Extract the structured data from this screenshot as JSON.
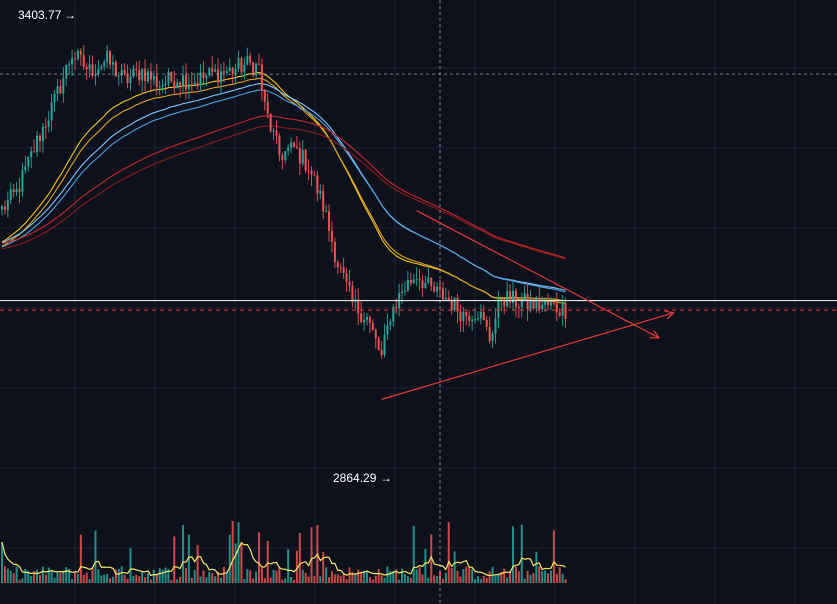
{
  "colors": {
    "background": "#0d111c",
    "grid": "#1c2232",
    "candle_up": "#26a69a",
    "candle_down": "#ef5350",
    "ma_yellow": "#f5c518",
    "ma_orange": "#e0a020",
    "ma_blue": "#4aa3df",
    "ma_lightblue": "#7ec8ff",
    "ma_red": "#c62828",
    "ma_darkred": "#8e1b1b",
    "trendline": "#e53935",
    "crosshair": "#b0b4c0",
    "price_line": "#ffffff",
    "ref_line": "#e53935",
    "volume_ma": "#f5e663"
  },
  "chart_data": {
    "type": "candlestick",
    "high_label": "3403.77",
    "low_label": "2864.29",
    "high_value": 3403.77,
    "low_value": 2864.29,
    "y_range": [
      2725,
      3420
    ],
    "grid": true,
    "anchors": [
      [
        0,
        3140
      ],
      [
        5,
        3165
      ],
      [
        12,
        3240
      ],
      [
        18,
        3300
      ],
      [
        24,
        3370
      ],
      [
        30,
        3345
      ],
      [
        36,
        3360
      ],
      [
        42,
        3330
      ],
      [
        48,
        3345
      ],
      [
        54,
        3325
      ],
      [
        60,
        3335
      ],
      [
        66,
        3330
      ],
      [
        72,
        3340
      ],
      [
        78,
        3345
      ],
      [
        84,
        3355
      ],
      [
        88,
        3350
      ],
      [
        90,
        3290
      ],
      [
        95,
        3220
      ],
      [
        100,
        3230
      ],
      [
        105,
        3205
      ],
      [
        110,
        3145
      ],
      [
        115,
        3060
      ],
      [
        120,
        3000
      ],
      [
        125,
        2980
      ],
      [
        130,
        2920
      ],
      [
        133,
        2985
      ],
      [
        137,
        3020
      ],
      [
        142,
        3045
      ],
      [
        147,
        3020
      ],
      [
        152,
        3010
      ],
      [
        158,
        2985
      ],
      [
        163,
        2990
      ],
      [
        167,
        2950
      ],
      [
        171,
        3010
      ],
      [
        175,
        3005
      ],
      [
        180,
        3000
      ],
      [
        186,
        2998
      ],
      [
        193,
        2992
      ]
    ],
    "trend_lines": [
      {
        "name": "descending resistance",
        "from": [
          142,
          3138
        ],
        "to": [
          225,
          2950
        ]
      },
      {
        "name": "ascending support",
        "from": [
          130,
          2859
        ],
        "to": [
          230,
          2987
        ]
      }
    ],
    "crosshair_price": 3005,
    "reference_price": 2991,
    "crosshair_bar": 150
  }
}
